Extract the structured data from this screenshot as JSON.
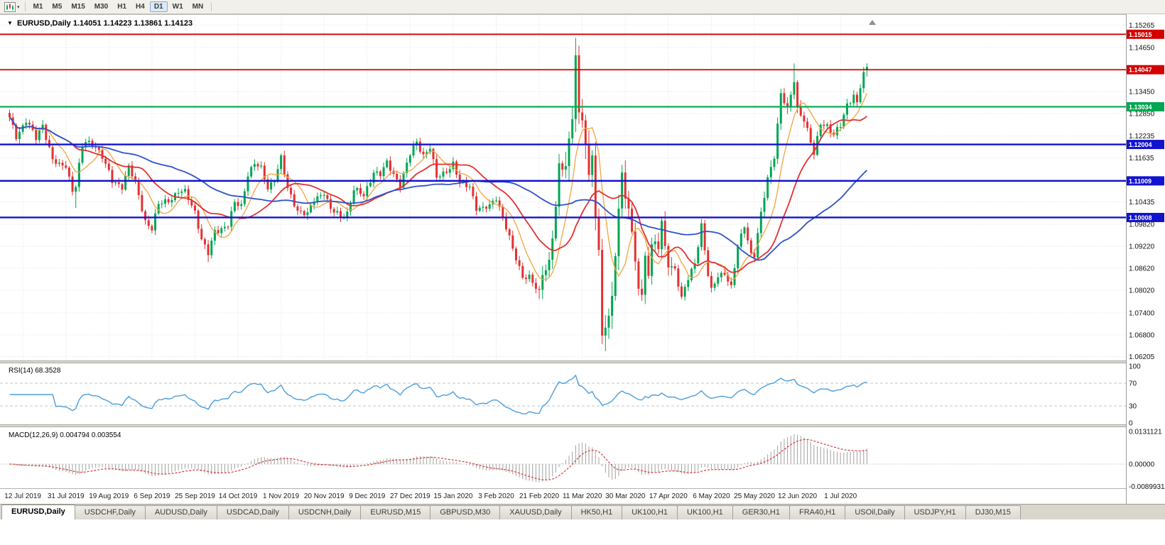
{
  "toolbar": {
    "timeframes": [
      "M1",
      "M5",
      "M15",
      "M30",
      "H1",
      "H4",
      "D1",
      "W1",
      "MN"
    ],
    "active_timeframe": "D1"
  },
  "chart": {
    "symbol_title": "EURUSD,Daily",
    "open": "1.14051",
    "high": "1.14223",
    "low": "1.13861",
    "close": "1.14123",
    "title_text": "EURUSD,Daily 1.14051 1.14223 1.13861 1.14123"
  },
  "price_axis": {
    "ticks": [
      "1.15265",
      "1.14650",
      "1.13450",
      "1.12850",
      "1.12235",
      "1.11635",
      "1.10435",
      "1.09820",
      "1.09220",
      "1.08620",
      "1.08020",
      "1.07400",
      "1.06800",
      "1.06205"
    ]
  },
  "time_axis": {
    "labels": [
      "12 Jul 2019",
      "31 Jul 2019",
      "19 Aug 2019",
      "6 Sep 2019",
      "25 Sep 2019",
      "14 Oct 2019",
      "1 Nov 2019",
      "20 Nov 2019",
      "9 Dec 2019",
      "27 Dec 2019",
      "15 Jan 2020",
      "3 Feb 2020",
      "21 Feb 2020",
      "11 Mar 2020",
      "30 Mar 2020",
      "17 Apr 2020",
      "6 May 2020",
      "25 May 2020",
      "12 Jun 2020",
      "1 Jul 2020"
    ]
  },
  "rsi": {
    "name": "RSI(14)",
    "value": "68.3528",
    "label_text": "RSI(14) 68.3528",
    "levels": [
      "100",
      "70",
      "30",
      "0"
    ],
    "level_lines": [
      70,
      30
    ],
    "line_color": "#4a9ede"
  },
  "macd": {
    "name": "MACD(12,26,9)",
    "values": "0.004794 0.003554",
    "label_text": "MACD(12,26,9) 0.004794 0.003554",
    "axis_labels": [
      "0.0131121",
      "0.00000",
      "-0.0089931"
    ],
    "axis_values": [
      0.0131121,
      0,
      -0.0089931
    ],
    "histogram_color": "#a0a0a0",
    "signal_color": "#d23b3b"
  },
  "tabs": [
    {
      "label": "EURUSD,Daily",
      "active": true
    },
    {
      "label": "USDCHF,Daily",
      "active": false
    },
    {
      "label": "AUDUSD,Daily",
      "active": false
    },
    {
      "label": "USDCAD,Daily",
      "active": false
    },
    {
      "label": "USDCNH,Daily",
      "active": false
    },
    {
      "label": "EURUSD,M15",
      "active": false
    },
    {
      "label": "GBPUSD,M30",
      "active": false
    },
    {
      "label": "XAUUSD,Daily",
      "active": false
    },
    {
      "label": "HK50,H1",
      "active": false
    },
    {
      "label": "UK100,H1",
      "active": false
    },
    {
      "label": "UK100,H1",
      "active": false
    },
    {
      "label": "GER30,H1",
      "active": false
    },
    {
      "label": "FRA40,H1",
      "active": false
    },
    {
      "label": "USOil,Daily",
      "active": false
    },
    {
      "label": "USDJPY,H1",
      "active": false
    },
    {
      "label": "DJ30,M15",
      "active": false
    }
  ],
  "chart_data": {
    "type": "candlestick",
    "symbol": "EURUSD",
    "period": "Daily",
    "bars": 260,
    "price_range": [
      1.061,
      1.1537
    ],
    "colors": {
      "up": "#00a651",
      "down": "#e23131"
    },
    "anchors": [
      [
        0,
        1.127
      ],
      [
        2,
        1.1222
      ],
      [
        5,
        1.1268
      ],
      [
        8,
        1.1215
      ],
      [
        10,
        1.1255
      ],
      [
        13,
        1.116
      ],
      [
        15,
        1.114
      ],
      [
        17,
        1.1142
      ],
      [
        19,
        1.1078
      ],
      [
        20,
        1.109
      ],
      [
        22,
        1.1195
      ],
      [
        23,
        1.1205
      ],
      [
        26,
        1.1198
      ],
      [
        28,
        1.1168
      ],
      [
        31,
        1.1098
      ],
      [
        34,
        1.1088
      ],
      [
        36,
        1.114
      ],
      [
        38,
        1.1092
      ],
      [
        41,
        1.0992
      ],
      [
        43,
        1.0972
      ],
      [
        45,
        1.1035
      ],
      [
        48,
        1.1048
      ],
      [
        51,
        1.1072
      ],
      [
        53,
        1.1068
      ],
      [
        56,
        1.1018
      ],
      [
        58,
        1.0942
      ],
      [
        60,
        1.09
      ],
      [
        62,
        1.0962
      ],
      [
        64,
        1.0972
      ],
      [
        66,
        1.0982
      ],
      [
        68,
        1.1038
      ],
      [
        70,
        1.1032
      ],
      [
        72,
        1.1122
      ],
      [
        74,
        1.1148
      ],
      [
        76,
        1.1132
      ],
      [
        78,
        1.1082
      ],
      [
        80,
        1.1108
      ],
      [
        82,
        1.1162
      ],
      [
        84,
        1.1078
      ],
      [
        87,
        1.1022
      ],
      [
        90,
        1.1008
      ],
      [
        92,
        1.1048
      ],
      [
        95,
        1.1072
      ],
      [
        97,
        1.1022
      ],
      [
        100,
        1.1002
      ],
      [
        102,
        1.1015
      ],
      [
        104,
        1.1078
      ],
      [
        107,
        1.1058
      ],
      [
        110,
        1.1128
      ],
      [
        112,
        1.1118
      ],
      [
        114,
        1.1148
      ],
      [
        116,
        1.112
      ],
      [
        118,
        1.1092
      ],
      [
        121,
        1.1172
      ],
      [
        123,
        1.1208
      ],
      [
        125,
        1.1172
      ],
      [
        127,
        1.1192
      ],
      [
        129,
        1.1108
      ],
      [
        131,
        1.1122
      ],
      [
        134,
        1.1148
      ],
      [
        136,
        1.1092
      ],
      [
        139,
        1.1088
      ],
      [
        141,
        1.1028
      ],
      [
        143,
        1.1022
      ],
      [
        145,
        1.1032
      ],
      [
        147,
        1.1058
      ],
      [
        149,
        1.1002
      ],
      [
        152,
        1.0912
      ],
      [
        155,
        1.0842
      ],
      [
        157,
        1.0838
      ],
      [
        160,
        1.0788
      ],
      [
        161,
        1.0852
      ],
      [
        163,
        1.0882
      ],
      [
        165,
        1.1028
      ],
      [
        166,
        1.1132
      ],
      [
        168,
        1.1138
      ],
      [
        170,
        1.1288
      ],
      [
        171,
        1.1446
      ],
      [
        172,
        1.1282
      ],
      [
        173,
        1.1272
      ],
      [
        174,
        1.1186
      ],
      [
        175,
        1.1108
      ],
      [
        176,
        1.1182
      ],
      [
        177,
        1.0998
      ],
      [
        178,
        1.0918
      ],
      [
        179,
        1.0692
      ],
      [
        180,
        1.0688
      ],
      [
        181,
        1.0726
      ],
      [
        182,
        1.0788
      ],
      [
        183,
        1.0882
      ],
      [
        184,
        1.1032
      ],
      [
        185,
        1.1138
      ],
      [
        186,
        1.1048
      ],
      [
        187,
        1.1032
      ],
      [
        188,
        1.0962
      ],
      [
        189,
        1.0862
      ],
      [
        190,
        1.0808
      ],
      [
        191,
        1.0792
      ],
      [
        192,
        1.0892
      ],
      [
        193,
        1.0858
      ],
      [
        194,
        1.0932
      ],
      [
        196,
        1.0918
      ],
      [
        197,
        1.0982
      ],
      [
        198,
        1.0912
      ],
      [
        199,
        1.0878
      ],
      [
        201,
        1.0862
      ],
      [
        203,
        1.0778
      ],
      [
        205,
        1.0832
      ],
      [
        207,
        1.0878
      ],
      [
        209,
        1.0982
      ],
      [
        211,
        1.0842
      ],
      [
        212,
        1.0798
      ],
      [
        214,
        1.0842
      ],
      [
        216,
        1.0852
      ],
      [
        218,
        1.0808
      ],
      [
        220,
        1.0918
      ],
      [
        222,
        1.0982
      ],
      [
        224,
        1.0902
      ],
      [
        225,
        1.0898
      ],
      [
        227,
        1.1008
      ],
      [
        229,
        1.1108
      ],
      [
        231,
        1.1172
      ],
      [
        233,
        1.1338
      ],
      [
        235,
        1.1292
      ],
      [
        237,
        1.1378
      ],
      [
        238,
        1.1302
      ],
      [
        240,
        1.1268
      ],
      [
        243,
        1.1172
      ],
      [
        245,
        1.1262
      ],
      [
        247,
        1.1252
      ],
      [
        249,
        1.1222
      ],
      [
        250,
        1.1238
      ],
      [
        251,
        1.1252
      ],
      [
        253,
        1.1312
      ],
      [
        255,
        1.1335
      ],
      [
        256,
        1.131
      ],
      [
        258,
        1.1398
      ],
      [
        259,
        1.14123
      ]
    ],
    "wick_overrides": {
      "20": {
        "low": 1.1027
      },
      "60": {
        "low": 1.0879
      },
      "160": {
        "low": 1.0778
      },
      "171": {
        "high": 1.1492
      },
      "179": {
        "low": 1.0655
      },
      "180": {
        "low": 1.0636
      },
      "237": {
        "high": 1.1422
      },
      "258": {
        "high": 1.1412
      }
    },
    "last_bar": {
      "open": 1.14051,
      "high": 1.14223,
      "low": 1.13861,
      "close": 1.14123
    },
    "horizontal_lines": [
      {
        "price": 1.15015,
        "label": "1.15015",
        "color": "#d40000",
        "width": 1.8
      },
      {
        "price": 1.14047,
        "label": "1.14047",
        "color": "#d40000",
        "width": 1.8
      },
      {
        "price": 1.13034,
        "label": "1.13034",
        "color": "#00a651",
        "width": 2.2
      },
      {
        "price": 1.12004,
        "label": "1.12004",
        "color": "#1212cf",
        "width": 2.4
      },
      {
        "price": 1.11009,
        "label": "1.11009",
        "color": "#1212cf",
        "width": 2.4
      },
      {
        "price": 1.10008,
        "label": "1.10008",
        "color": "#1212cf",
        "width": 2.4
      }
    ],
    "moving_averages": [
      {
        "period": 8,
        "color": "#f2a33c",
        "width": 1.3
      },
      {
        "period": 20,
        "color": "#e23131",
        "width": 1.8
      },
      {
        "period": 50,
        "color": "#2e51c9",
        "width": 1.8
      }
    ],
    "x_label_first_index": 4,
    "x_label_step": 13
  }
}
